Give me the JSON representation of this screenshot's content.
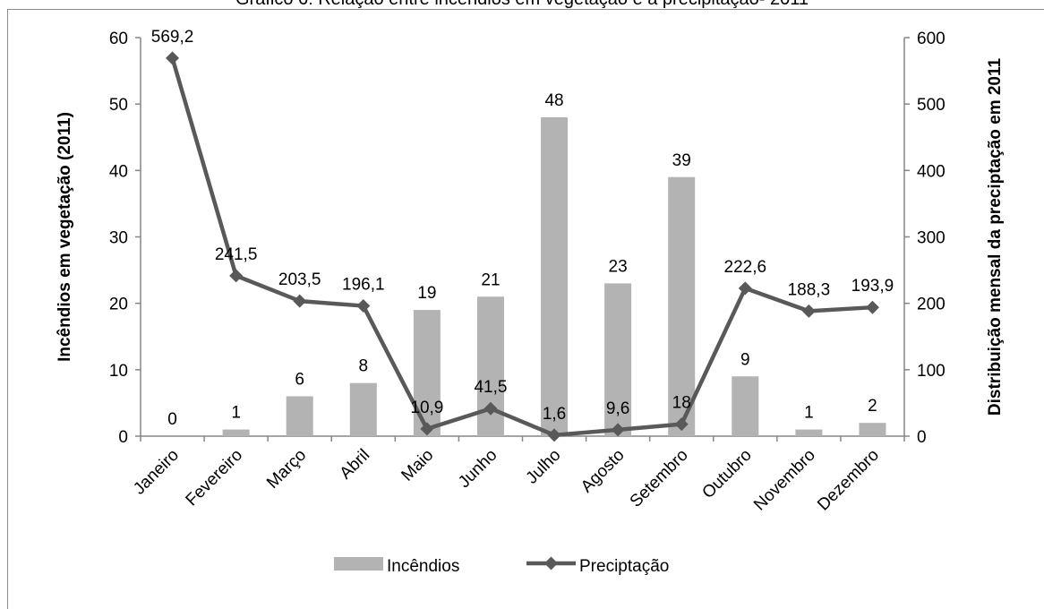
{
  "chart_data": {
    "type": "bar",
    "title": "Gráfico 6: Relação entre incêndios em vegetação e a precipitação- 2011",
    "categories": [
      "Janeiro",
      "Fevereiro",
      "Março",
      "Abril",
      "Maio",
      "Junho",
      "Julho",
      "Agosto",
      "Setembro",
      "Outubro",
      "Novembro",
      "Dezembro"
    ],
    "series": [
      {
        "name": "Incêndios",
        "type": "bar",
        "axis": "left",
        "color": "#b3b3b3",
        "values": [
          0,
          1,
          6,
          8,
          19,
          21,
          48,
          23,
          39,
          9,
          1,
          2
        ],
        "labels": [
          "0",
          "1",
          "6",
          "8",
          "19",
          "21",
          "48",
          "23",
          "39",
          "9",
          "1",
          "2"
        ]
      },
      {
        "name": "Preciptação",
        "type": "line",
        "axis": "right",
        "color": "#595959",
        "marker": "diamond",
        "values": [
          569.2,
          241.5,
          203.5,
          196.1,
          10.9,
          41.5,
          1.6,
          9.6,
          18,
          222.6,
          188.3,
          193.9
        ],
        "labels": [
          "569,2",
          "241,5",
          "203,5",
          "196,1",
          "10,9",
          "41,5",
          "1,6",
          "9,6",
          "18",
          "222,6",
          "188,3",
          "193,9"
        ]
      }
    ],
    "ylabel": "Incêndios em vegetação (2011)",
    "y2label": "Distribuição mensal da preciptação em 2011",
    "ylim": [
      0,
      60
    ],
    "y2lim": [
      0,
      600
    ],
    "yticks": [
      "0",
      "10",
      "20",
      "30",
      "40",
      "50",
      "60"
    ],
    "y2ticks": [
      "0",
      "100",
      "200",
      "300",
      "400",
      "500",
      "600"
    ],
    "grid": false,
    "legend": "bottom"
  }
}
